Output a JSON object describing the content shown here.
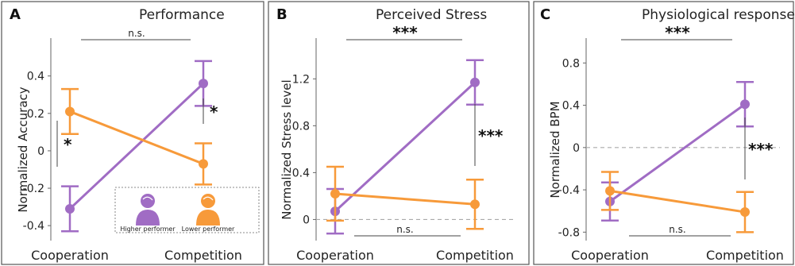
{
  "chart_data": [
    {
      "type": "line",
      "panel": "A",
      "title": "Performance",
      "ylabel": "Normalized Accuracy",
      "categories": [
        "Cooperation",
        "Competition"
      ],
      "ylim": [
        -0.48,
        0.56
      ],
      "yticks": [
        -0.4,
        -0.2,
        0,
        0.2,
        0.4
      ],
      "ytick_labels": [
        "-0.4",
        "-0.2",
        "0",
        "0.2",
        "0.4"
      ],
      "zero_line": false,
      "series": [
        {
          "name": "Higher performer",
          "color": "#a06cc4",
          "values": [
            -0.31,
            0.36
          ],
          "err": [
            0.12,
            0.12
          ]
        },
        {
          "name": "Lower performer",
          "color": "#f79a3a",
          "values": [
            0.21,
            -0.07
          ],
          "err": [
            0.12,
            0.11
          ]
        }
      ],
      "annotations": [
        {
          "text": "n.s.",
          "type": "ns-top"
        },
        {
          "text": "*",
          "type": "within",
          "cat": 0
        },
        {
          "text": "*",
          "type": "within",
          "cat": 1
        }
      ],
      "legend": {
        "placement": "bottom-right",
        "items": [
          "Higher performer",
          "Lower performer"
        ]
      }
    },
    {
      "type": "line",
      "panel": "B",
      "title": "Perceived Stress",
      "ylabel": "Normalized Stress level",
      "categories": [
        "Cooperation",
        "Competition"
      ],
      "ylim": [
        -0.18,
        1.48
      ],
      "yticks": [
        0,
        0.4,
        0.8,
        1.2
      ],
      "ytick_labels": [
        "0",
        "0.4",
        "0.8",
        "1.2"
      ],
      "zero_line": true,
      "series": [
        {
          "name": "Higher performer",
          "color": "#a06cc4",
          "values": [
            0.07,
            1.17
          ],
          "err": [
            0.19,
            0.19
          ]
        },
        {
          "name": "Lower performer",
          "color": "#f79a3a",
          "values": [
            0.22,
            0.13
          ],
          "err": [
            0.23,
            0.21
          ]
        }
      ],
      "annotations": [
        {
          "text": "***",
          "type": "sig-top"
        },
        {
          "text": "***",
          "type": "within",
          "cat": 1
        },
        {
          "text": "n.s.",
          "type": "ns-bottom"
        }
      ]
    },
    {
      "type": "line",
      "panel": "C",
      "title": "Physiological response",
      "ylabel": "Normalized BPM",
      "categories": [
        "Cooperation",
        "Competition"
      ],
      "ylim": [
        -0.88,
        0.96
      ],
      "yticks": [
        -0.8,
        -0.4,
        0,
        0.4,
        0.8
      ],
      "ytick_labels": [
        "-0.8",
        "-0.4",
        "0",
        "0.4",
        "0.8"
      ],
      "zero_line": true,
      "series": [
        {
          "name": "Higher performer",
          "color": "#a06cc4",
          "values": [
            -0.51,
            0.41
          ],
          "err": [
            0.18,
            0.21
          ]
        },
        {
          "name": "Lower performer",
          "color": "#f79a3a",
          "values": [
            -0.41,
            -0.61
          ],
          "err": [
            0.18,
            0.19
          ]
        }
      ],
      "annotations": [
        {
          "text": "***",
          "type": "sig-top"
        },
        {
          "text": "***",
          "type": "within",
          "cat": 1
        },
        {
          "text": "n.s.",
          "type": "ns-bottom"
        }
      ]
    }
  ]
}
